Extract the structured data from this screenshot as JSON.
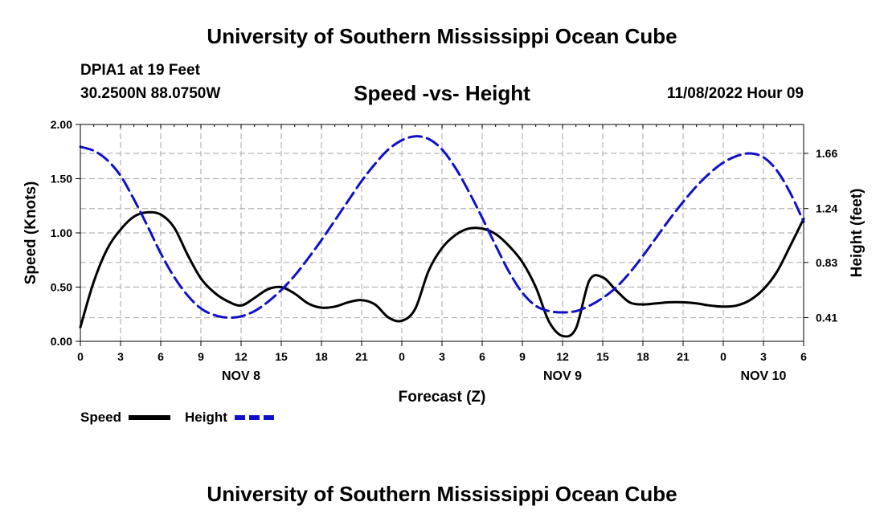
{
  "header": {
    "title": "University of Southern Mississippi Ocean Cube",
    "station": "DPIA1 at 19 Feet",
    "coordinates": "30.2500N  88.0750W",
    "subtitle": "Speed -vs- Height",
    "datetime": "11/08/2022 Hour 09"
  },
  "footer": {
    "title": "University of Southern Mississippi Ocean Cube"
  },
  "colors": {
    "speed": "#000000",
    "height": "#1010c8",
    "grid": "#b4b4b4"
  },
  "chart_data": {
    "type": "line",
    "title": "Speed -vs- Height",
    "xlabel": "Forecast (Z)",
    "ylabel": "Speed (Knots)",
    "ylabel_right": "Height (feet)",
    "x_unit": "hours from 00Z NOV 8",
    "xlim": [
      0,
      54
    ],
    "x_ticks": [
      0,
      3,
      6,
      9,
      12,
      15,
      18,
      21,
      24,
      27,
      30,
      33,
      36,
      39,
      42,
      45,
      48,
      51,
      54
    ],
    "x_tick_labels": [
      "0",
      "3",
      "6",
      "9",
      "12",
      "15",
      "18",
      "21",
      "0",
      "3",
      "6",
      "9",
      "12",
      "15",
      "18",
      "21",
      "0",
      "3",
      "6"
    ],
    "day_labels": [
      {
        "x": 12,
        "label": "NOV 8"
      },
      {
        "x": 36,
        "label": "NOV 9"
      },
      {
        "x": 51,
        "label": "NOV 10"
      }
    ],
    "ylim": [
      0,
      2
    ],
    "y_ticks": [
      0,
      0.5,
      1,
      1.5,
      2
    ],
    "y_tick_labels": [
      "0.00",
      "0.50",
      "1.00",
      "1.50",
      "2.00"
    ],
    "y2_ticks": [
      0.41,
      0.83,
      1.24,
      1.66
    ],
    "y2_tick_labels": [
      "0.41",
      "0.83",
      "1.24",
      "1.66"
    ],
    "y2_scale": {
      "y2_at_0": 0.23,
      "y2_per_y": 0.825
    },
    "grid": true,
    "legend": [
      {
        "name": "Speed",
        "style": "solid"
      },
      {
        "name": "Height",
        "style": "dashed"
      }
    ],
    "series": [
      {
        "name": "Speed",
        "axis": "left",
        "style": "solid",
        "x": [
          0,
          1,
          2,
          3,
          4,
          5,
          6,
          7,
          8,
          9,
          10,
          11,
          12,
          13,
          14,
          15,
          16,
          17,
          18,
          19,
          20,
          21,
          22,
          23,
          24,
          25,
          26,
          27,
          28,
          29,
          30,
          31,
          32,
          33,
          34,
          35,
          36,
          37,
          38,
          39,
          40,
          41,
          42,
          43,
          44,
          45,
          46,
          47,
          48,
          49,
          50,
          51,
          52,
          53,
          54
        ],
        "values": [
          0.13,
          0.55,
          0.85,
          1.03,
          1.15,
          1.19,
          1.17,
          1.05,
          0.8,
          0.58,
          0.45,
          0.37,
          0.33,
          0.4,
          0.48,
          0.5,
          0.44,
          0.35,
          0.31,
          0.32,
          0.36,
          0.38,
          0.34,
          0.22,
          0.19,
          0.3,
          0.65,
          0.86,
          0.98,
          1.04,
          1.04,
          0.99,
          0.88,
          0.73,
          0.5,
          0.18,
          0.05,
          0.12,
          0.56,
          0.59,
          0.47,
          0.36,
          0.34,
          0.35,
          0.36,
          0.36,
          0.35,
          0.33,
          0.32,
          0.33,
          0.38,
          0.48,
          0.64,
          0.88,
          1.13
        ]
      },
      {
        "name": "Height",
        "axis": "right",
        "style": "dashed",
        "x": [
          0,
          1,
          2,
          3,
          4,
          5,
          6,
          7,
          8,
          9,
          10,
          11,
          12,
          13,
          14,
          15,
          16,
          17,
          18,
          19,
          20,
          21,
          22,
          23,
          24,
          25,
          26,
          27,
          28,
          29,
          30,
          31,
          32,
          33,
          34,
          35,
          36,
          37,
          38,
          39,
          40,
          41,
          42,
          43,
          44,
          45,
          46,
          47,
          48,
          49,
          50,
          51,
          52,
          53,
          54
        ],
        "values": [
          1.71,
          1.68,
          1.61,
          1.49,
          1.31,
          1.11,
          0.9,
          0.72,
          0.58,
          0.48,
          0.43,
          0.41,
          0.42,
          0.46,
          0.53,
          0.62,
          0.73,
          0.86,
          1.0,
          1.15,
          1.3,
          1.45,
          1.58,
          1.69,
          1.76,
          1.79,
          1.77,
          1.69,
          1.55,
          1.37,
          1.17,
          0.96,
          0.76,
          0.6,
          0.5,
          0.46,
          0.45,
          0.46,
          0.5,
          0.56,
          0.64,
          0.75,
          0.88,
          1.02,
          1.16,
          1.29,
          1.41,
          1.51,
          1.59,
          1.64,
          1.66,
          1.63,
          1.53,
          1.36,
          1.14
        ]
      }
    ]
  }
}
